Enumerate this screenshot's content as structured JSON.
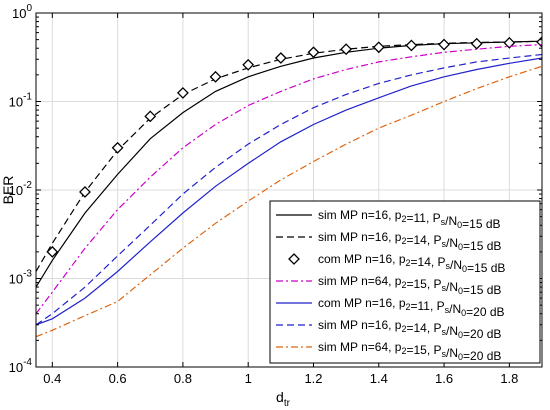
{
  "chart_data": {
    "type": "line",
    "xlabel": "d",
    "xlabel_sub": "tr",
    "ylabel": "BER",
    "xlim": [
      0.35,
      1.9
    ],
    "ylim": [
      0.0001,
      1
    ],
    "yscale": "log",
    "grid": true,
    "legend_position": "bottom-right",
    "x_ticks": [
      0.4,
      0.6,
      0.8,
      1,
      1.2,
      1.4,
      1.6,
      1.8
    ],
    "x_tick_labels": [
      "0.4",
      "0.6",
      "0.8",
      "1",
      "1.2",
      "1.4",
      "1.6",
      "1.8"
    ],
    "y_ticks": [
      0.0001,
      0.001,
      0.01,
      0.1,
      1
    ],
    "y_tick_labels": [
      {
        "base": "10",
        "exp": "-4"
      },
      {
        "base": "10",
        "exp": "-3"
      },
      {
        "base": "10",
        "exp": "-2"
      },
      {
        "base": "10",
        "exp": "-1"
      },
      {
        "base": "10",
        "exp": "0"
      }
    ],
    "series": [
      {
        "label_parts": [
          [
            "sim MP n=16, p",
            ""
          ],
          [
            "2",
            "sub"
          ],
          [
            "=11, P",
            ""
          ],
          [
            "s",
            "sub"
          ],
          [
            "/N",
            ""
          ],
          [
            "0",
            "sub"
          ],
          [
            "=15 dB",
            ""
          ]
        ],
        "color": "#000000",
        "dash": "",
        "marker": "none",
        "x": [
          0.35,
          0.4,
          0.5,
          0.6,
          0.7,
          0.8,
          0.9,
          1.0,
          1.1,
          1.2,
          1.3,
          1.4,
          1.5,
          1.6,
          1.7,
          1.8,
          1.9
        ],
        "y": [
          0.0008,
          0.0016,
          0.0055,
          0.015,
          0.038,
          0.075,
          0.13,
          0.19,
          0.25,
          0.31,
          0.36,
          0.4,
          0.43,
          0.45,
          0.46,
          0.47,
          0.48
        ]
      },
      {
        "label_parts": [
          [
            "sim MP n=16, p",
            ""
          ],
          [
            "2",
            "sub"
          ],
          [
            "=14, P",
            ""
          ],
          [
            "s",
            "sub"
          ],
          [
            "/N",
            ""
          ],
          [
            "0",
            "sub"
          ],
          [
            "=15 dB",
            ""
          ]
        ],
        "color": "#000000",
        "dash": "7,4",
        "marker": "none",
        "x": [
          0.35,
          0.4,
          0.5,
          0.6,
          0.7,
          0.8,
          0.9,
          1.0,
          1.1,
          1.2,
          1.3,
          1.4,
          1.5,
          1.6,
          1.7,
          1.8,
          1.9
        ],
        "y": [
          0.0012,
          0.0025,
          0.0095,
          0.028,
          0.065,
          0.12,
          0.18,
          0.24,
          0.3,
          0.35,
          0.39,
          0.42,
          0.44,
          0.455,
          0.465,
          0.47,
          0.48
        ]
      },
      {
        "label_parts": [
          [
            "com MP n=16, p",
            ""
          ],
          [
            "2",
            "sub"
          ],
          [
            "=14, P",
            ""
          ],
          [
            "s",
            "sub"
          ],
          [
            "/N",
            ""
          ],
          [
            "0",
            "sub"
          ],
          [
            "=15 dB",
            ""
          ]
        ],
        "color": "#000000",
        "dash": "",
        "marker": "diamond",
        "line": false,
        "x": [
          0.4,
          0.5,
          0.6,
          0.7,
          0.8,
          0.9,
          1.0,
          1.1,
          1.2,
          1.3,
          1.4,
          1.5,
          1.6,
          1.7,
          1.8,
          1.9
        ],
        "y": [
          0.002,
          0.0095,
          0.03,
          0.068,
          0.125,
          0.19,
          0.26,
          0.31,
          0.36,
          0.39,
          0.41,
          0.43,
          0.44,
          0.45,
          0.46,
          0.47
        ]
      },
      {
        "label_parts": [
          [
            "sim MP n=64, p",
            ""
          ],
          [
            "2",
            "sub"
          ],
          [
            "=15, P",
            ""
          ],
          [
            "s",
            "sub"
          ],
          [
            "/N",
            ""
          ],
          [
            "0",
            "sub"
          ],
          [
            "=15 dB",
            ""
          ]
        ],
        "color": "#cc00cc",
        "dash": "7,3,2,3",
        "marker": "none",
        "x": [
          0.35,
          0.4,
          0.5,
          0.6,
          0.7,
          0.8,
          0.9,
          1.0,
          1.1,
          1.2,
          1.3,
          1.4,
          1.5,
          1.6,
          1.7,
          1.8,
          1.9
        ],
        "y": [
          0.0004,
          0.0007,
          0.0022,
          0.006,
          0.014,
          0.03,
          0.055,
          0.09,
          0.13,
          0.18,
          0.23,
          0.28,
          0.32,
          0.36,
          0.39,
          0.42,
          0.44
        ]
      },
      {
        "label_parts": [
          [
            "com MP n=16, p",
            ""
          ],
          [
            "2",
            "sub"
          ],
          [
            "=11, P",
            ""
          ],
          [
            "s",
            "sub"
          ],
          [
            "/N",
            ""
          ],
          [
            "0",
            "sub"
          ],
          [
            "=20 dB",
            ""
          ]
        ],
        "color": "#2222cc",
        "dash": "",
        "marker": "none",
        "x": [
          0.35,
          0.4,
          0.5,
          0.6,
          0.7,
          0.8,
          0.9,
          1.0,
          1.1,
          1.2,
          1.3,
          1.4,
          1.5,
          1.6,
          1.7,
          1.8,
          1.9
        ],
        "y": [
          0.0003,
          0.00035,
          0.0006,
          0.0012,
          0.0026,
          0.0055,
          0.011,
          0.02,
          0.035,
          0.055,
          0.08,
          0.11,
          0.15,
          0.19,
          0.23,
          0.27,
          0.31
        ]
      },
      {
        "label_parts": [
          [
            "sim MP n=16, p",
            ""
          ],
          [
            "2",
            "sub"
          ],
          [
            "=14, P",
            ""
          ],
          [
            "s",
            "sub"
          ],
          [
            "/N",
            ""
          ],
          [
            "0",
            "sub"
          ],
          [
            "=20 dB",
            ""
          ]
        ],
        "color": "#2222cc",
        "dash": "7,4",
        "marker": "none",
        "x": [
          0.35,
          0.4,
          0.5,
          0.6,
          0.7,
          0.8,
          0.9,
          1.0,
          1.1,
          1.2,
          1.3,
          1.4,
          1.5,
          1.6,
          1.7,
          1.8,
          1.9
        ],
        "y": [
          0.0003,
          0.0004,
          0.0008,
          0.0018,
          0.004,
          0.009,
          0.018,
          0.033,
          0.055,
          0.085,
          0.12,
          0.16,
          0.2,
          0.24,
          0.28,
          0.31,
          0.34
        ]
      },
      {
        "label_parts": [
          [
            "sim MP n=64, p",
            ""
          ],
          [
            "2",
            "sub"
          ],
          [
            "=15, P",
            ""
          ],
          [
            "s",
            "sub"
          ],
          [
            "/N",
            ""
          ],
          [
            "0",
            "sub"
          ],
          [
            "=20 dB",
            ""
          ]
        ],
        "color": "#dd6611",
        "dash": "7,3,2,3",
        "marker": "none",
        "x": [
          0.35,
          0.4,
          0.5,
          0.6,
          0.7,
          0.8,
          0.9,
          1.0,
          1.1,
          1.2,
          1.3,
          1.4,
          1.5,
          1.6,
          1.7,
          1.8,
          1.9
        ],
        "y": [
          0.00022,
          0.00026,
          0.00038,
          0.00055,
          0.0011,
          0.0022,
          0.0042,
          0.0075,
          0.013,
          0.021,
          0.033,
          0.05,
          0.07,
          0.1,
          0.14,
          0.19,
          0.25
        ]
      }
    ]
  }
}
